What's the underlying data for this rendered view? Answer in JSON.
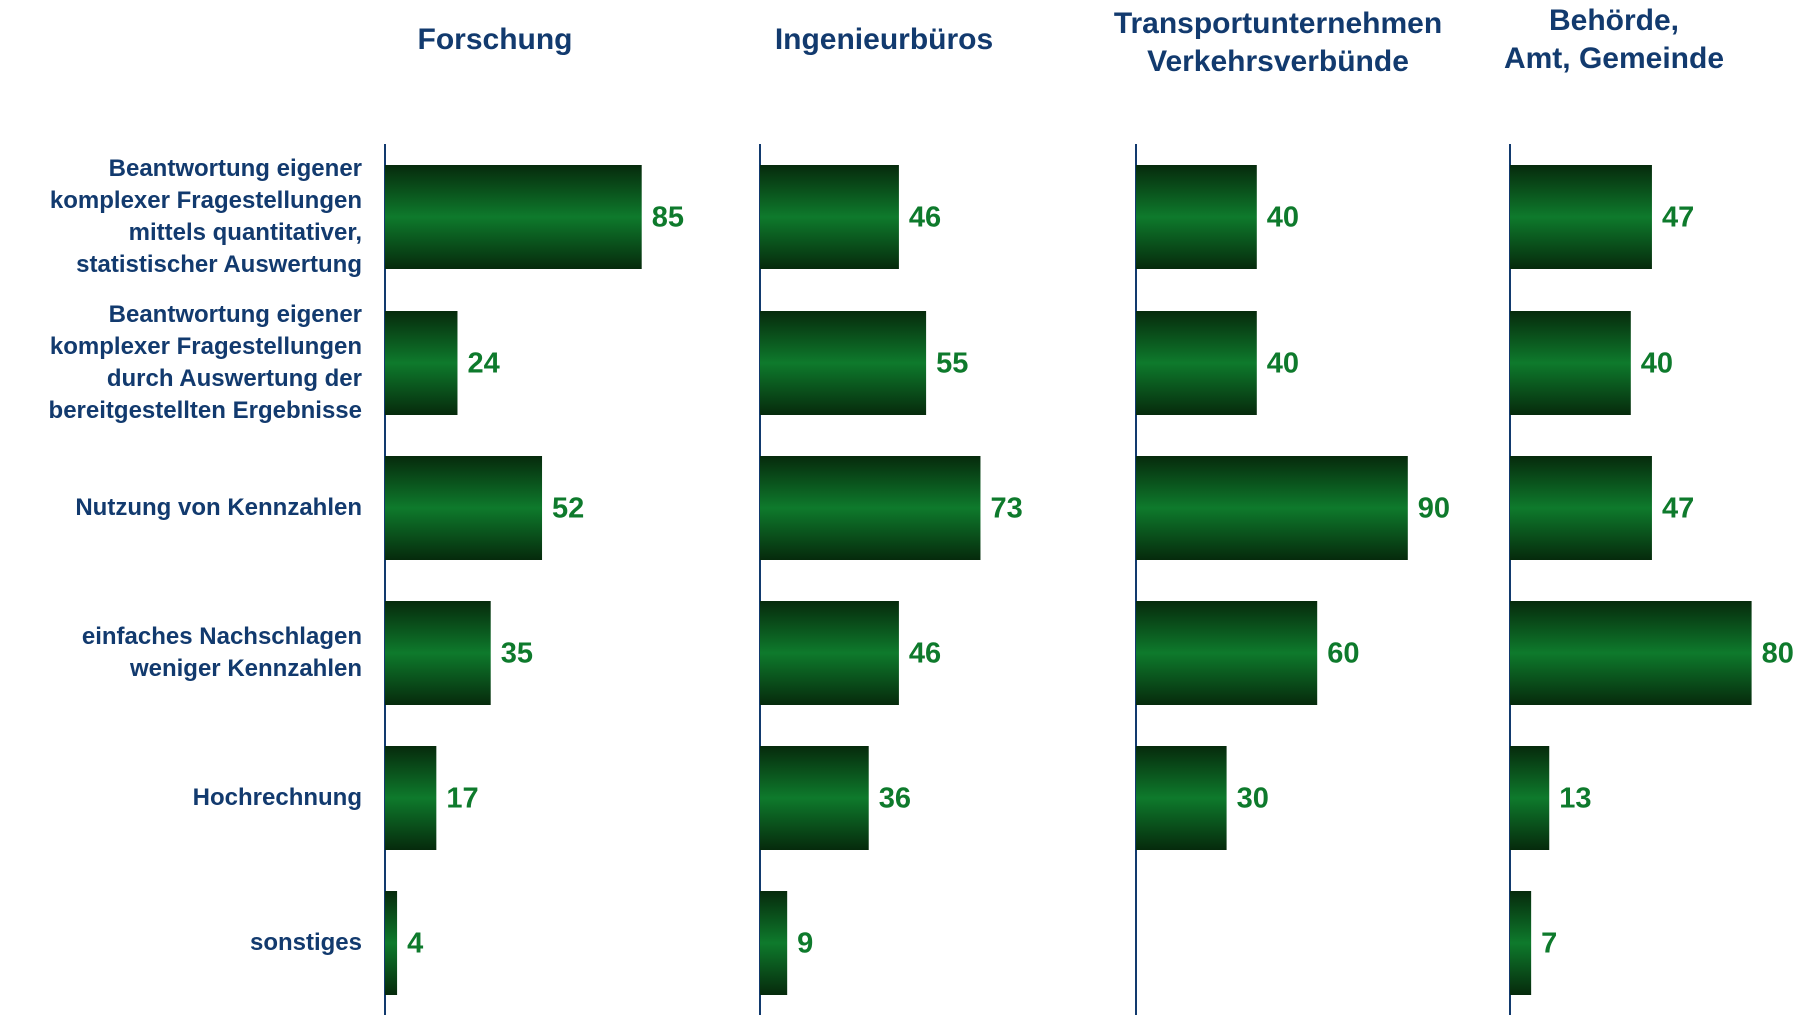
{
  "chart_data": {
    "type": "bar",
    "orientation": "horizontal",
    "categories": [
      "Beantwortung eigener\nkomplexer Fragestellungen\nmittels quantitativer,\nstatistischer Auswertung",
      "Beantwortung eigener\nkomplexer Fragestellungen\ndurch Auswertung der\nbereitgestellten Ergebnisse",
      "Nutzung von Kennzahlen",
      "einfaches Nachschlagen\nweniger Kennzahlen",
      "Hochrechnung",
      "sonstiges"
    ],
    "series": [
      {
        "name": "Forschung",
        "color": "#0e7a2c",
        "values": [
          85,
          24,
          52,
          35,
          17,
          4
        ]
      },
      {
        "name": "Ingenieurbüros",
        "color": "#0e7a2c",
        "values": [
          46,
          55,
          73,
          46,
          36,
          9
        ]
      },
      {
        "name": "Transportunternehmen\nVerkehrsverbünde",
        "color": "#0e7a2c",
        "values": [
          40,
          40,
          90,
          60,
          30,
          null
        ]
      },
      {
        "name": "Behörde,\nAmt, Gemeinde",
        "color": "#0e7a2c",
        "values": [
          47,
          40,
          47,
          80,
          13,
          7
        ]
      }
    ]
  }
}
